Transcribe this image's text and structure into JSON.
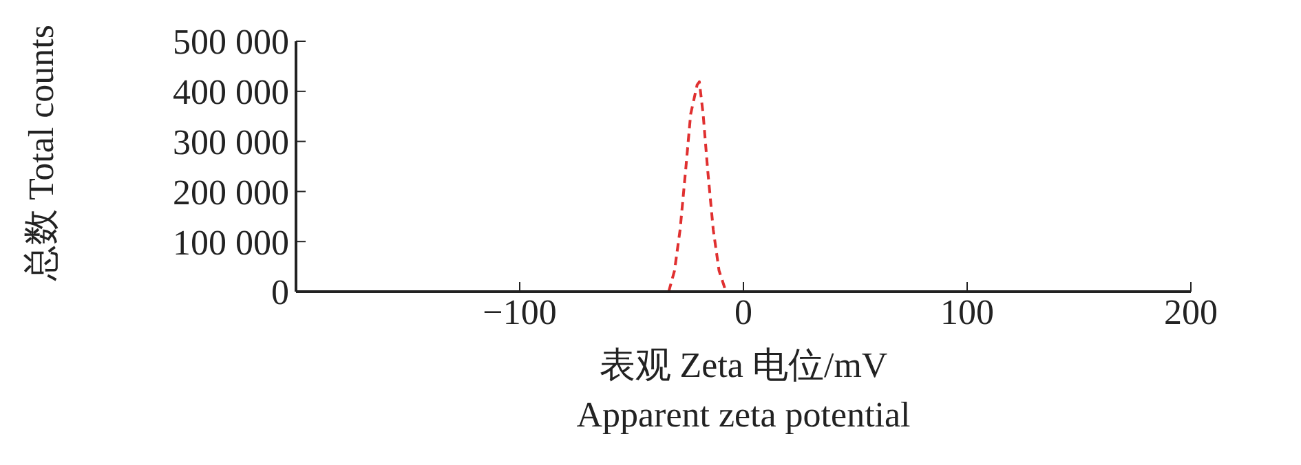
{
  "chart_data": {
    "type": "line",
    "xlabel": "表观 Zeta 电位/mV\nApparent zeta potential",
    "ylabel": "总数 Total counts",
    "x": [
      -33.4,
      -30.8,
      -28.3,
      -25.8,
      -23.6,
      -20.7,
      -19.7,
      -18.0,
      -16.0,
      -13.5,
      -10.9,
      -7.8
    ],
    "series": [
      {
        "color": "#e03030",
        "values": [
          0,
          42000,
          124000,
          244000,
          354000,
          413000,
          419000,
          354000,
          244000,
          124000,
          42000,
          0
        ]
      }
    ],
    "xlim": [
      -200,
      200
    ],
    "xticks": [
      -100,
      0,
      100,
      200
    ],
    "ylim": [
      0,
      500000
    ],
    "yticks": [
      0,
      {
        "value": 100000,
        "label": "100 000"
      },
      {
        "value": 200000,
        "label": "200 000"
      },
      {
        "value": 300000,
        "label": "300 000"
      },
      {
        "value": 400000,
        "label": "400 000"
      },
      {
        "value": 500000,
        "label": "500 000"
      }
    ],
    "grid": false,
    "legend": false,
    "marker": "none",
    "line_style": "dashed"
  }
}
